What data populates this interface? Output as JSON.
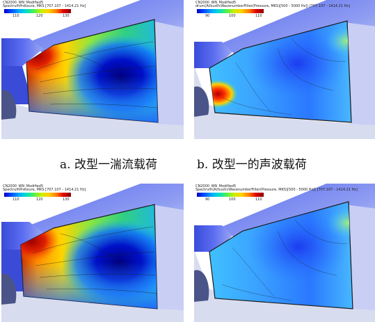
{
  "panels": [
    {
      "id": "a",
      "header1": "CN2000_WN_Modified5",
      "header2": "SpectrumPressure, MKS [707.107 - 1414.21 Hz]",
      "ticks": [
        "110",
        "120",
        "130"
      ]
    },
    {
      "id": "b",
      "header1": "CN2000_WN_Modified5",
      "header2": "drum(AcousticWavenumberFilter(Pressure, MKS)[500 - 5000 Hz]) [707.107 - 1414.21 Hz]",
      "ticks": [
        "90",
        "100",
        "110"
      ]
    },
    {
      "id": "c",
      "header1": "CN2000_WN_Modified5",
      "header2": "SpectrumPressure, MKS [707.107 - 1414.21 Hz]",
      "ticks": [
        "110",
        "120",
        "130"
      ]
    },
    {
      "id": "d",
      "header1": "CN2000_WN_Modified5",
      "header2": "Spectrum(AcousticWavenumberFilter(Pressure, MKS)[500 - 5000 Hz]) [707.107 - 1414.21 Hz]",
      "ticks": [
        "90",
        "100",
        "110"
      ]
    }
  ],
  "captions": {
    "a": "a. 改型一湍流载荷",
    "b": "b. 改型一的声波载荷"
  }
}
